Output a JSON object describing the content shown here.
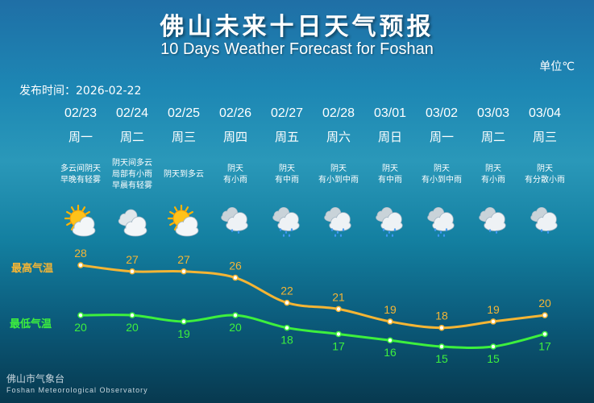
{
  "title_cn": "佛山未来十日天气预报",
  "title_en": "10 Days Weather Forecast for Foshan",
  "unit": "单位℃",
  "publish_time": "发布时间：2026-02-22",
  "high_label": "最高气温",
  "low_label": "最低气温",
  "footer_cn": "佛山市气象台",
  "footer_en": "Foshan Meteorological Observatory",
  "colors": {
    "high": "#f5b534",
    "low": "#3df03d"
  },
  "days": [
    {
      "date": "02/23",
      "weekday": "周一",
      "desc": "多云间阴天\n早晚有轻雾",
      "icon": "sun-cloud-icon"
    },
    {
      "date": "02/24",
      "weekday": "周二",
      "desc": "阴天间多云\n局部有小雨\n早晨有轻雾",
      "icon": "cloud-icon"
    },
    {
      "date": "02/25",
      "weekday": "周三",
      "desc": "阴天到多云",
      "icon": "sun-cloud-icon"
    },
    {
      "date": "02/26",
      "weekday": "周四",
      "desc": "阴天\n有小雨",
      "icon": "light-rain-icon"
    },
    {
      "date": "02/27",
      "weekday": "周五",
      "desc": "阴天\n有中雨",
      "icon": "moderate-rain-icon"
    },
    {
      "date": "02/28",
      "weekday": "周六",
      "desc": "阴天\n有小到中雨",
      "icon": "moderate-rain-icon"
    },
    {
      "date": "03/01",
      "weekday": "周日",
      "desc": "阴天\n有中雨",
      "icon": "moderate-rain-icon"
    },
    {
      "date": "03/02",
      "weekday": "周一",
      "desc": "阴天\n有小到中雨",
      "icon": "moderate-rain-icon"
    },
    {
      "date": "03/03",
      "weekday": "周二",
      "desc": "阴天\n有小雨",
      "icon": "light-rain-icon"
    },
    {
      "date": "03/04",
      "weekday": "周三",
      "desc": "阴天\n有分散小雨",
      "icon": "light-rain-icon"
    }
  ],
  "chart_data": {
    "type": "line",
    "categories": [
      "02/23",
      "02/24",
      "02/25",
      "02/26",
      "02/27",
      "02/28",
      "03/01",
      "03/02",
      "03/03",
      "03/04"
    ],
    "series": [
      {
        "name": "最高气温",
        "values": [
          28,
          27,
          27,
          26,
          22,
          21,
          19,
          18,
          19,
          20
        ]
      },
      {
        "name": "最低气温",
        "values": [
          20,
          20,
          19,
          20,
          18,
          17,
          16,
          15,
          15,
          17
        ]
      }
    ],
    "unit": "℃",
    "grid": false
  }
}
